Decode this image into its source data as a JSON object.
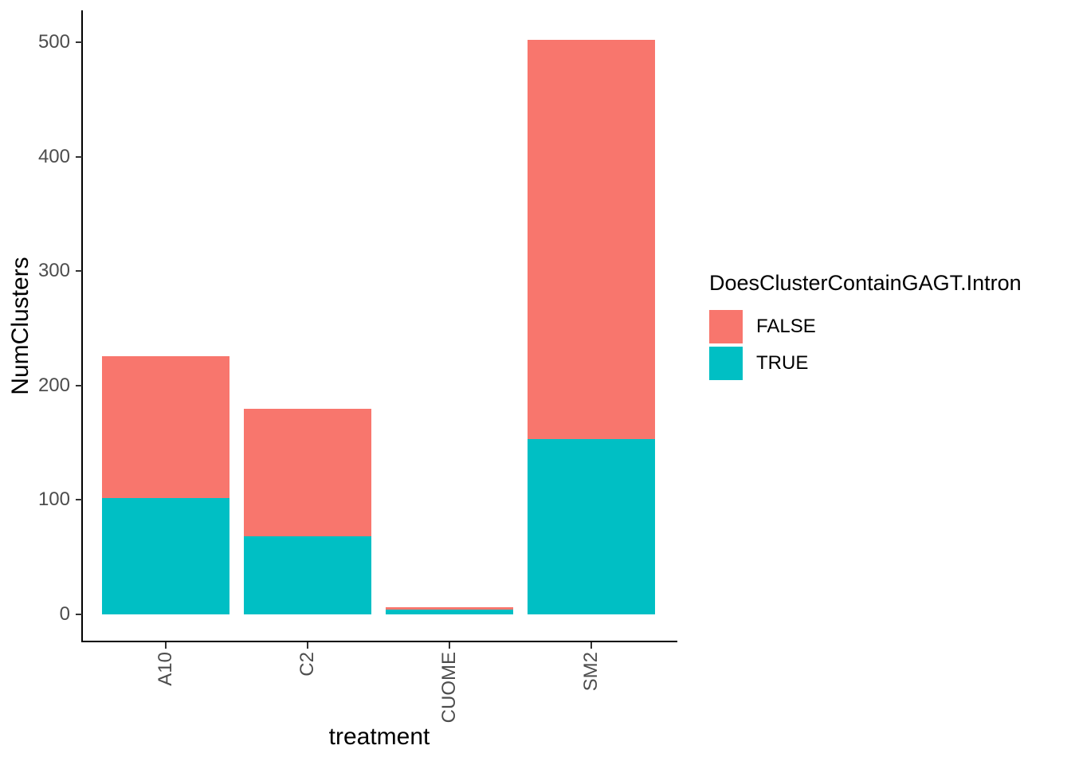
{
  "chart_data": {
    "type": "bar",
    "stacked": true,
    "title": "",
    "xlabel": "treatment",
    "ylabel": "NumClusters",
    "categories": [
      "A10",
      "C2",
      "CUOME",
      "SM2"
    ],
    "series": [
      {
        "name": "FALSE",
        "color": "#F8766D",
        "values": [
          124,
          112,
          2,
          349
        ]
      },
      {
        "name": "TRUE",
        "color": "#00BFC4",
        "values": [
          102,
          68,
          4,
          153
        ]
      }
    ],
    "stack_totals": [
      226,
      180,
      6,
      502
    ],
    "ylim": [
      0,
      500
    ],
    "yticks": [
      0,
      100,
      200,
      300,
      400,
      500
    ],
    "grid": false,
    "legend": {
      "title": "DoesClusterContainGAGT.Intron",
      "position": "right",
      "entries": [
        {
          "label": "FALSE",
          "color": "#F8766D"
        },
        {
          "label": "TRUE",
          "color": "#00BFC4"
        }
      ]
    },
    "axis_text_color": "#4d4d4d",
    "axis_line_color": "#000000"
  }
}
